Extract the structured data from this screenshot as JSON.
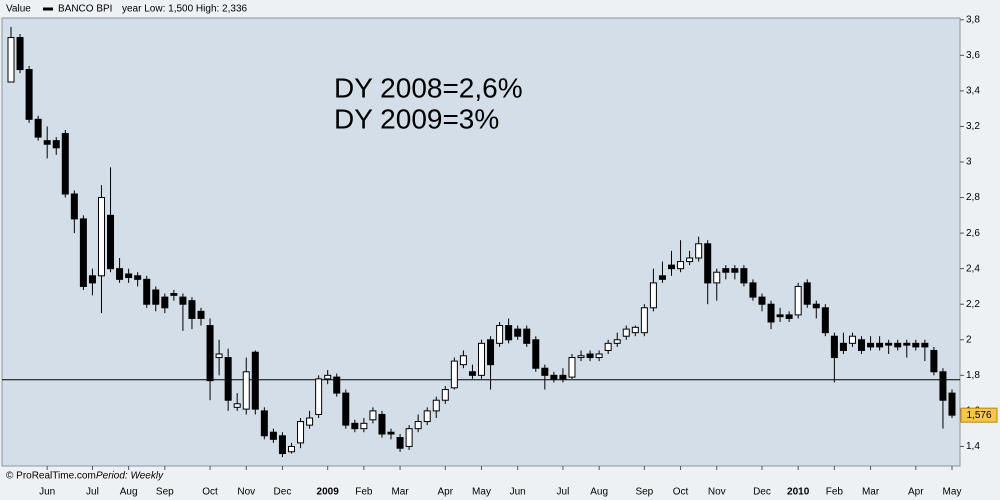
{
  "header": {
    "label": "Value",
    "instrument": "BANCO BPI",
    "range_text": "year Low: 1,500 High: 2,336"
  },
  "footer": {
    "source": "© ProRealTime.com",
    "period": "Period: Weekly"
  },
  "chart_data": {
    "type": "candlestick",
    "annotations": [
      "DY 2008=2,6%",
      "DY 2009=3%"
    ],
    "categories": [
      null,
      null,
      null,
      null,
      "Jun",
      null,
      null,
      null,
      null,
      "Jul",
      null,
      null,
      null,
      "Aug",
      null,
      null,
      null,
      "Sep",
      null,
      null,
      null,
      null,
      "Oct",
      null,
      null,
      null,
      "Nov",
      null,
      null,
      null,
      "Dec",
      null,
      null,
      null,
      null,
      "2009",
      null,
      null,
      null,
      "Feb",
      null,
      null,
      null,
      "Mar",
      null,
      null,
      null,
      null,
      "Apr",
      null,
      null,
      null,
      "May",
      null,
      null,
      null,
      "Jun",
      null,
      null,
      null,
      null,
      "Jul",
      null,
      null,
      null,
      "Aug",
      null,
      null,
      null,
      null,
      "Sep",
      null,
      null,
      null,
      "Oct",
      null,
      null,
      null,
      "Nov",
      null,
      null,
      null,
      null,
      "Dec",
      null,
      null,
      null,
      "2010",
      null,
      null,
      null,
      "Feb",
      null,
      null,
      null,
      "Mar",
      null,
      null,
      null,
      null,
      "Apr",
      null,
      null,
      null,
      "May"
    ],
    "open": [
      3.45,
      3.7,
      3.52,
      3.24,
      3.12,
      3.12,
      3.16,
      2.82,
      2.68,
      2.36,
      2.36,
      2.7,
      2.4,
      2.37,
      2.36,
      2.34,
      2.28,
      2.24,
      2.26,
      2.24,
      2.22,
      2.16,
      2.08,
      1.9,
      1.9,
      1.62,
      1.61,
      1.93,
      1.6,
      1.48,
      1.46,
      1.37,
      1.42,
      1.52,
      1.58,
      1.78,
      1.79,
      1.7,
      1.53,
      1.5,
      1.55,
      1.58,
      1.48,
      1.45,
      1.4,
      1.5,
      1.54,
      1.6,
      1.66,
      1.73,
      1.86,
      1.82,
      1.8,
      2.0,
      1.98,
      2.08,
      2.06,
      2.06,
      2.0,
      1.84,
      1.8,
      1.8,
      1.79,
      1.9,
      1.92,
      1.9,
      1.94,
      1.98,
      2.02,
      2.04,
      2.04,
      2.18,
      2.36,
      2.42,
      2.4,
      2.44,
      2.46,
      2.54,
      2.32,
      2.4,
      2.4,
      2.4,
      2.32,
      2.24,
      2.2,
      2.14,
      2.14,
      2.14,
      2.32,
      2.2,
      2.18,
      2.02,
      1.98,
      1.98,
      2.0,
      1.98,
      1.98,
      1.98,
      1.98,
      1.98,
      1.98,
      1.98,
      1.94,
      1.82,
      1.7
    ],
    "high": [
      3.76,
      3.72,
      3.54,
      3.26,
      3.2,
      3.14,
      3.18,
      2.84,
      2.7,
      2.4,
      2.87,
      2.97,
      2.46,
      2.4,
      2.38,
      2.36,
      2.3,
      2.26,
      2.28,
      2.26,
      2.24,
      2.18,
      2.12,
      2.0,
      1.95,
      1.7,
      1.9,
      1.94,
      1.62,
      1.5,
      1.48,
      1.42,
      1.56,
      1.6,
      1.8,
      1.83,
      1.81,
      1.72,
      1.55,
      1.56,
      1.62,
      1.6,
      1.5,
      1.47,
      1.52,
      1.58,
      1.62,
      1.68,
      1.74,
      1.9,
      1.94,
      1.86,
      2.0,
      2.02,
      2.1,
      2.12,
      2.08,
      2.08,
      2.02,
      1.86,
      1.82,
      1.84,
      1.92,
      1.94,
      1.94,
      1.94,
      2.0,
      2.04,
      2.08,
      2.08,
      2.2,
      2.4,
      2.44,
      2.5,
      2.56,
      2.5,
      2.58,
      2.56,
      2.4,
      2.42,
      2.42,
      2.42,
      2.34,
      2.26,
      2.22,
      2.18,
      2.16,
      2.32,
      2.34,
      2.22,
      2.2,
      2.04,
      2.04,
      2.04,
      2.02,
      2.02,
      2.02,
      2.0,
      2.0,
      2.0,
      2.0,
      2.0,
      1.96,
      1.84,
      1.72
    ],
    "low": [
      3.45,
      3.5,
      3.22,
      3.12,
      3.02,
      3.04,
      2.8,
      2.6,
      2.28,
      2.25,
      2.15,
      2.38,
      2.32,
      2.32,
      2.3,
      2.18,
      2.16,
      2.15,
      2.22,
      2.05,
      2.06,
      2.08,
      1.66,
      1.8,
      1.6,
      1.6,
      1.58,
      1.58,
      1.44,
      1.42,
      1.34,
      1.36,
      1.39,
      1.5,
      1.56,
      1.75,
      1.68,
      1.5,
      1.48,
      1.48,
      1.53,
      1.45,
      1.44,
      1.37,
      1.38,
      1.48,
      1.52,
      1.56,
      1.64,
      1.72,
      1.84,
      1.78,
      1.78,
      1.72,
      1.96,
      1.98,
      2.0,
      1.96,
      1.82,
      1.72,
      1.76,
      1.76,
      1.78,
      1.88,
      1.88,
      1.88,
      1.92,
      1.96,
      2.0,
      2.02,
      2.02,
      2.16,
      2.32,
      2.36,
      2.38,
      2.42,
      2.44,
      2.2,
      2.22,
      2.34,
      2.34,
      2.3,
      2.22,
      2.16,
      2.06,
      2.1,
      2.1,
      2.12,
      2.18,
      2.12,
      2.02,
      1.76,
      1.92,
      1.96,
      1.92,
      1.94,
      1.94,
      1.92,
      1.94,
      1.9,
      1.94,
      1.88,
      1.8,
      1.5,
      1.56
    ],
    "close": [
      3.7,
      3.52,
      3.24,
      3.14,
      3.1,
      3.08,
      2.82,
      2.68,
      2.3,
      2.32,
      2.8,
      2.4,
      2.34,
      2.35,
      2.34,
      2.2,
      2.2,
      2.18,
      2.25,
      2.2,
      2.12,
      2.12,
      1.77,
      1.92,
      1.66,
      1.64,
      1.82,
      1.61,
      1.46,
      1.44,
      1.36,
      1.4,
      1.54,
      1.56,
      1.78,
      1.8,
      1.7,
      1.52,
      1.5,
      1.53,
      1.6,
      1.47,
      1.47,
      1.39,
      1.5,
      1.54,
      1.6,
      1.66,
      1.72,
      1.88,
      1.91,
      1.8,
      1.98,
      1.86,
      2.08,
      2.0,
      2.02,
      1.98,
      1.84,
      1.8,
      1.78,
      1.78,
      1.9,
      1.91,
      1.9,
      1.92,
      1.98,
      2.0,
      2.06,
      2.07,
      2.18,
      2.32,
      2.34,
      2.4,
      2.44,
      2.46,
      2.54,
      2.32,
      2.38,
      2.38,
      2.38,
      2.32,
      2.24,
      2.2,
      2.1,
      2.13,
      2.12,
      2.3,
      2.2,
      2.18,
      2.04,
      1.9,
      1.94,
      2.02,
      1.94,
      1.96,
      1.96,
      1.97,
      1.96,
      1.97,
      1.96,
      1.96,
      1.82,
      1.66,
      1.576
    ],
    "up_color": "#ffffff",
    "down_color": "#000000",
    "reference_line": 1.775,
    "last_label": {
      "value": 1.576,
      "label": "1,576"
    },
    "ylim": [
      1.29,
      3.81
    ],
    "yticks": [
      {
        "value": 1.4,
        "label": "1,4"
      },
      {
        "value": 1.6,
        "label": "1,6"
      },
      {
        "value": 1.8,
        "label": "1,8"
      },
      2,
      {
        "value": 2.2,
        "label": "2,2"
      },
      {
        "value": 2.4,
        "label": "2,4"
      },
      {
        "value": 2.6,
        "label": "2,6"
      },
      {
        "value": 2.8,
        "label": "2,8"
      },
      3,
      {
        "value": 3.2,
        "label": "3,2"
      },
      {
        "value": 3.4,
        "label": "3,4"
      },
      {
        "value": 3.6,
        "label": "3,6"
      },
      {
        "value": 3.8,
        "label": "3,8"
      }
    ]
  }
}
